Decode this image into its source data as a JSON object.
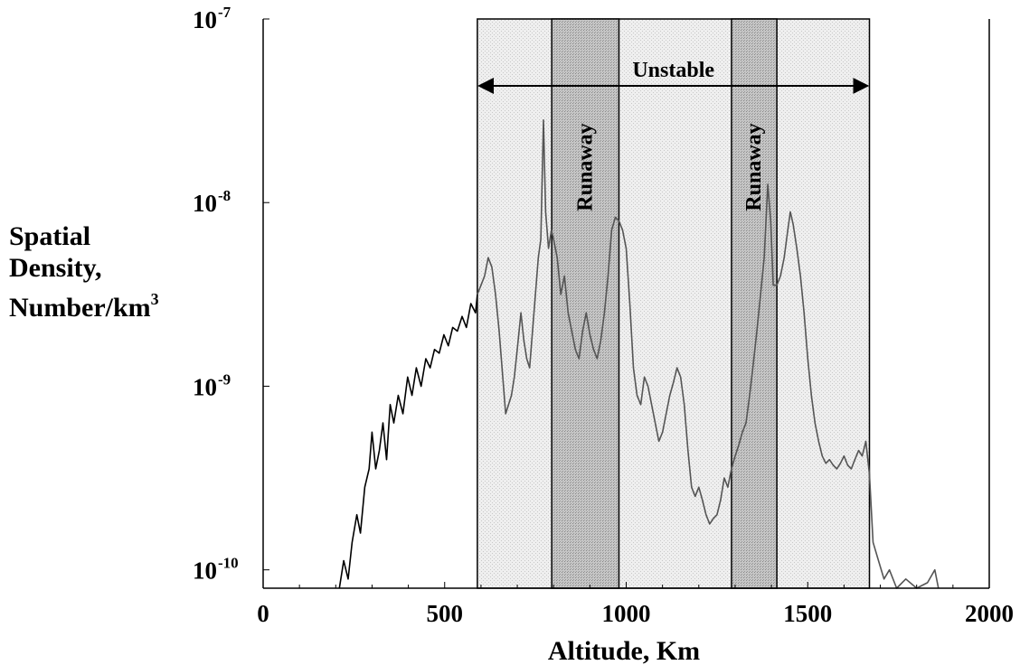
{
  "chart_data": {
    "type": "line",
    "xlabel": "Altitude, Km",
    "ylabel_lines": [
      "Spatial",
      "Density,",
      "Number/km"
    ],
    "ylabel_superscript": "3",
    "x_ticks": [
      {
        "value": 0,
        "label": "0"
      },
      {
        "value": 500,
        "label": "500"
      },
      {
        "value": 1000,
        "label": "1000"
      },
      {
        "value": 1500,
        "label": "1500"
      },
      {
        "value": 2000,
        "label": "2000"
      }
    ],
    "y_ticks": [
      {
        "exp": -7,
        "base": "10",
        "power": "-7"
      },
      {
        "exp": -8,
        "base": "10",
        "power": "-8"
      },
      {
        "exp": -9,
        "base": "10",
        "power": "-9"
      },
      {
        "exp": -10,
        "base": "10",
        "power": "-10"
      }
    ],
    "y_scale": "log",
    "xlim": [
      0,
      2000
    ],
    "ylim_log10": [
      -10.1,
      -7
    ],
    "regions": [
      {
        "label": "Unstable",
        "x_start": 590,
        "x_end": 1670,
        "shade": "#eeeeee"
      },
      {
        "label": "Runaway",
        "x_start": 795,
        "x_end": 980,
        "shade": "#c8c8c8"
      },
      {
        "label": "Runaway",
        "x_start": 1290,
        "x_end": 1415,
        "shade": "#c8c8c8"
      }
    ],
    "series": [
      {
        "color_low": "#000000",
        "color_high": "#555555",
        "points": [
          [
            210,
            -10.1
          ],
          [
            222,
            -9.95
          ],
          [
            234,
            -10.05
          ],
          [
            245,
            -9.85
          ],
          [
            258,
            -9.7
          ],
          [
            268,
            -9.8
          ],
          [
            280,
            -9.55
          ],
          [
            292,
            -9.45
          ],
          [
            300,
            -9.25
          ],
          [
            310,
            -9.45
          ],
          [
            320,
            -9.35
          ],
          [
            330,
            -9.2
          ],
          [
            340,
            -9.4
          ],
          [
            350,
            -9.1
          ],
          [
            360,
            -9.2
          ],
          [
            372,
            -9.05
          ],
          [
            385,
            -9.15
          ],
          [
            398,
            -8.95
          ],
          [
            410,
            -9.05
          ],
          [
            422,
            -8.9
          ],
          [
            435,
            -9.0
          ],
          [
            448,
            -8.85
          ],
          [
            460,
            -8.9
          ],
          [
            472,
            -8.8
          ],
          [
            485,
            -8.82
          ],
          [
            498,
            -8.72
          ],
          [
            510,
            -8.78
          ],
          [
            522,
            -8.68
          ],
          [
            535,
            -8.7
          ],
          [
            548,
            -8.62
          ],
          [
            560,
            -8.68
          ],
          [
            572,
            -8.55
          ],
          [
            585,
            -8.6
          ],
          [
            590,
            -8.5
          ],
          [
            600,
            -8.45
          ],
          [
            610,
            -8.4
          ],
          [
            620,
            -8.3
          ],
          [
            630,
            -8.35
          ],
          [
            640,
            -8.5
          ],
          [
            650,
            -8.7
          ],
          [
            660,
            -8.95
          ],
          [
            668,
            -9.15
          ],
          [
            676,
            -9.1
          ],
          [
            684,
            -9.05
          ],
          [
            692,
            -8.95
          ],
          [
            700,
            -8.8
          ],
          [
            710,
            -8.6
          ],
          [
            718,
            -8.75
          ],
          [
            726,
            -8.85
          ],
          [
            734,
            -8.9
          ],
          [
            742,
            -8.7
          ],
          [
            750,
            -8.5
          ],
          [
            758,
            -8.3
          ],
          [
            765,
            -8.2
          ],
          [
            772,
            -7.55
          ],
          [
            778,
            -8.05
          ],
          [
            786,
            -8.25
          ],
          [
            794,
            -8.15
          ],
          [
            800,
            -8.2
          ],
          [
            810,
            -8.3
          ],
          [
            820,
            -8.5
          ],
          [
            830,
            -8.4
          ],
          [
            840,
            -8.6
          ],
          [
            850,
            -8.7
          ],
          [
            860,
            -8.8
          ],
          [
            870,
            -8.85
          ],
          [
            880,
            -8.7
          ],
          [
            890,
            -8.6
          ],
          [
            900,
            -8.72
          ],
          [
            910,
            -8.8
          ],
          [
            920,
            -8.85
          ],
          [
            930,
            -8.75
          ],
          [
            940,
            -8.6
          ],
          [
            950,
            -8.4
          ],
          [
            960,
            -8.15
          ],
          [
            970,
            -8.08
          ],
          [
            980,
            -8.1
          ],
          [
            990,
            -8.15
          ],
          [
            1000,
            -8.25
          ],
          [
            1010,
            -8.55
          ],
          [
            1020,
            -8.9
          ],
          [
            1030,
            -9.05
          ],
          [
            1040,
            -9.1
          ],
          [
            1050,
            -8.95
          ],
          [
            1060,
            -9.0
          ],
          [
            1070,
            -9.1
          ],
          [
            1080,
            -9.2
          ],
          [
            1090,
            -9.3
          ],
          [
            1100,
            -9.25
          ],
          [
            1110,
            -9.15
          ],
          [
            1120,
            -9.05
          ],
          [
            1130,
            -8.98
          ],
          [
            1140,
            -8.9
          ],
          [
            1150,
            -8.95
          ],
          [
            1160,
            -9.1
          ],
          [
            1170,
            -9.35
          ],
          [
            1180,
            -9.55
          ],
          [
            1190,
            -9.6
          ],
          [
            1200,
            -9.55
          ],
          [
            1210,
            -9.62
          ],
          [
            1220,
            -9.7
          ],
          [
            1230,
            -9.75
          ],
          [
            1240,
            -9.72
          ],
          [
            1250,
            -9.7
          ],
          [
            1260,
            -9.62
          ],
          [
            1270,
            -9.5
          ],
          [
            1280,
            -9.55
          ],
          [
            1290,
            -9.45
          ],
          [
            1300,
            -9.38
          ],
          [
            1310,
            -9.32
          ],
          [
            1320,
            -9.25
          ],
          [
            1330,
            -9.2
          ],
          [
            1340,
            -9.05
          ],
          [
            1350,
            -8.88
          ],
          [
            1360,
            -8.7
          ],
          [
            1370,
            -8.5
          ],
          [
            1380,
            -8.3
          ],
          [
            1390,
            -7.9
          ],
          [
            1398,
            -8.1
          ],
          [
            1405,
            -8.45
          ],
          [
            1415,
            -8.45
          ],
          [
            1425,
            -8.4
          ],
          [
            1435,
            -8.3
          ],
          [
            1445,
            -8.15
          ],
          [
            1452,
            -8.05
          ],
          [
            1460,
            -8.12
          ],
          [
            1470,
            -8.25
          ],
          [
            1480,
            -8.4
          ],
          [
            1490,
            -8.6
          ],
          [
            1500,
            -8.85
          ],
          [
            1510,
            -9.05
          ],
          [
            1520,
            -9.2
          ],
          [
            1530,
            -9.3
          ],
          [
            1540,
            -9.38
          ],
          [
            1550,
            -9.42
          ],
          [
            1560,
            -9.4
          ],
          [
            1570,
            -9.43
          ],
          [
            1580,
            -9.45
          ],
          [
            1590,
            -9.42
          ],
          [
            1600,
            -9.38
          ],
          [
            1610,
            -9.43
          ],
          [
            1620,
            -9.45
          ],
          [
            1630,
            -9.4
          ],
          [
            1640,
            -9.35
          ],
          [
            1650,
            -9.38
          ],
          [
            1660,
            -9.3
          ],
          [
            1670,
            -9.48
          ],
          [
            1680,
            -9.85
          ],
          [
            1695,
            -9.95
          ],
          [
            1710,
            -10.05
          ],
          [
            1725,
            -10.0
          ],
          [
            1745,
            -10.1
          ],
          [
            1770,
            -10.05
          ],
          [
            1800,
            -10.1
          ],
          [
            1830,
            -10.07
          ],
          [
            1850,
            -10.0
          ],
          [
            1860,
            -10.1
          ]
        ]
      }
    ]
  }
}
